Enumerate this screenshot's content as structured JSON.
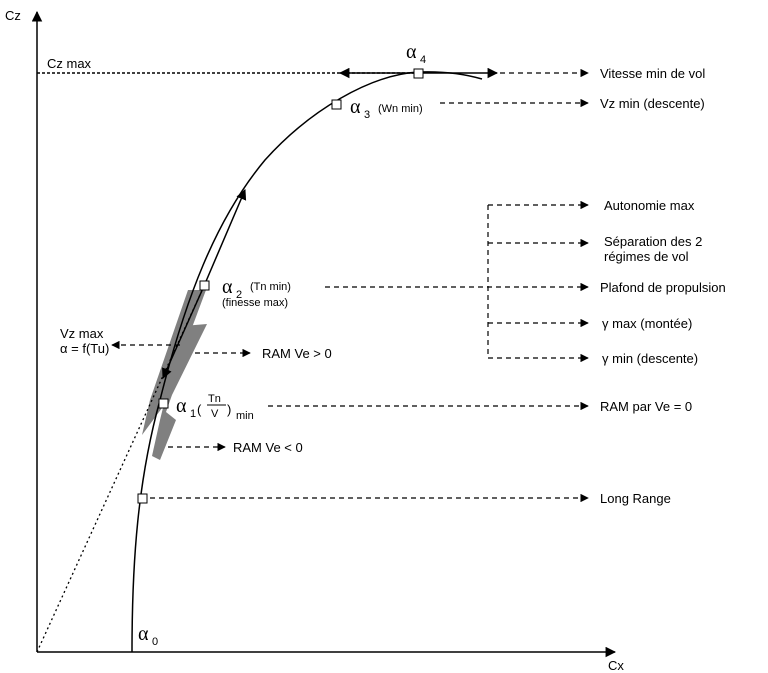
{
  "axes": {
    "y_label": "Cz",
    "x_label": "Cx",
    "cz_max": "Cz max"
  },
  "points": [
    {
      "symbol": "α",
      "sub": "0"
    },
    {
      "symbol": "α",
      "sub": "1",
      "numerator": "Tn",
      "denominator": "V",
      "suffix": "min"
    },
    {
      "symbol": "α",
      "sub": "2",
      "note": "(Tn min)",
      "note2": "(finesse max)"
    },
    {
      "symbol": "α",
      "sub": "3",
      "note": "(Wn min)"
    },
    {
      "symbol": "α",
      "sub": "4"
    }
  ],
  "right_labels": [
    "Vitesse min de vol",
    "Vz min (descente)",
    "Autonomie max",
    "Séparation des 2",
    "régimes de vol",
    "Plafond de propulsion",
    "γ max (montée)",
    "γ min (descente)",
    "RAM par Ve = 0",
    "Long Range"
  ],
  "left_labels": {
    "vz_max": "Vz max",
    "alpha_f": "α = f(Tu)",
    "ram_pos": "RAM Ve > 0",
    "ram_neg": "RAM Ve < 0"
  }
}
